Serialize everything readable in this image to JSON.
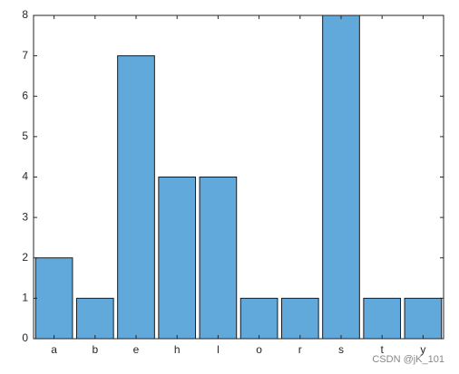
{
  "chart_data": {
    "type": "bar",
    "categories": [
      "a",
      "b",
      "e",
      "h",
      "l",
      "o",
      "r",
      "s",
      "t",
      "y"
    ],
    "values": [
      2,
      1,
      7,
      4,
      4,
      1,
      1,
      8,
      1,
      1
    ],
    "color": "#62a9db",
    "ylim": [
      0,
      8
    ],
    "yticks": [
      0,
      1,
      2,
      3,
      4,
      5,
      6,
      7,
      8
    ],
    "grid": false
  },
  "watermark": "CSDN @jK_101"
}
